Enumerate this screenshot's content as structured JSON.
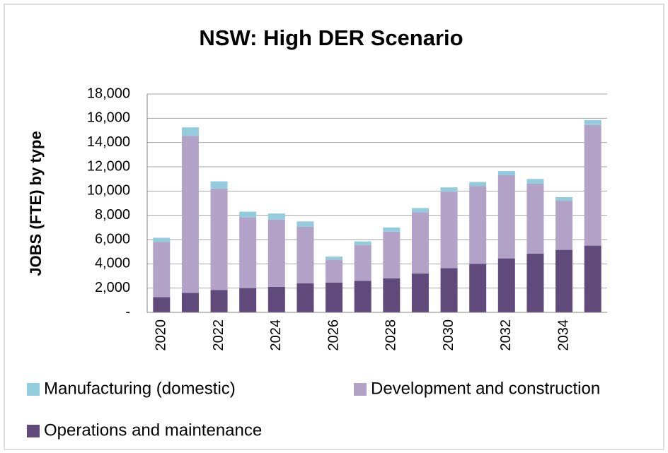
{
  "chart_data": {
    "type": "stacked_bar",
    "title": "NSW: High DER Scenario",
    "y_label": "JOBS (FTE) by type",
    "categories": [
      "2020",
      null,
      "2022",
      null,
      "2024",
      null,
      "2026",
      null,
      "2028",
      null,
      "2030",
      null,
      "2032",
      null,
      "2034",
      null
    ],
    "series": [
      {
        "name": "Manufacturing (domestic)",
        "color": "#93cddd",
        "values": [
          350,
          700,
          600,
          450,
          500,
          450,
          250,
          300,
          350,
          350,
          350,
          350,
          350,
          400,
          300,
          400
        ]
      },
      {
        "name": "Development and construction",
        "color": "#b3a2c7",
        "values": [
          4550,
          12950,
          8350,
          5850,
          5550,
          4650,
          1900,
          2950,
          3850,
          5050,
          6300,
          6400,
          6850,
          5750,
          4050,
          9950
        ]
      },
      {
        "name": "Operations and maintenance",
        "color": "#604a7b",
        "values": [
          1250,
          1600,
          1850,
          2000,
          2100,
          2400,
          2450,
          2600,
          2800,
          3200,
          3650,
          4000,
          4450,
          4850,
          5150,
          5500
        ]
      }
    ],
    "ylim": [
      0,
      18000
    ],
    "yticks": [
      {
        "value": 0,
        "label": "-"
      },
      {
        "value": 2000,
        "label": "2,000"
      },
      {
        "value": 4000,
        "label": "4,000"
      },
      {
        "value": 6000,
        "label": "6,000"
      },
      {
        "value": 8000,
        "label": "8,000"
      },
      {
        "value": 10000,
        "label": "10,000"
      },
      {
        "value": 12000,
        "label": "12,000"
      },
      {
        "value": 14000,
        "label": "14,000"
      },
      {
        "value": 16000,
        "label": "16,000"
      },
      {
        "value": 18000,
        "label": "18,000"
      }
    ],
    "grid": true
  }
}
